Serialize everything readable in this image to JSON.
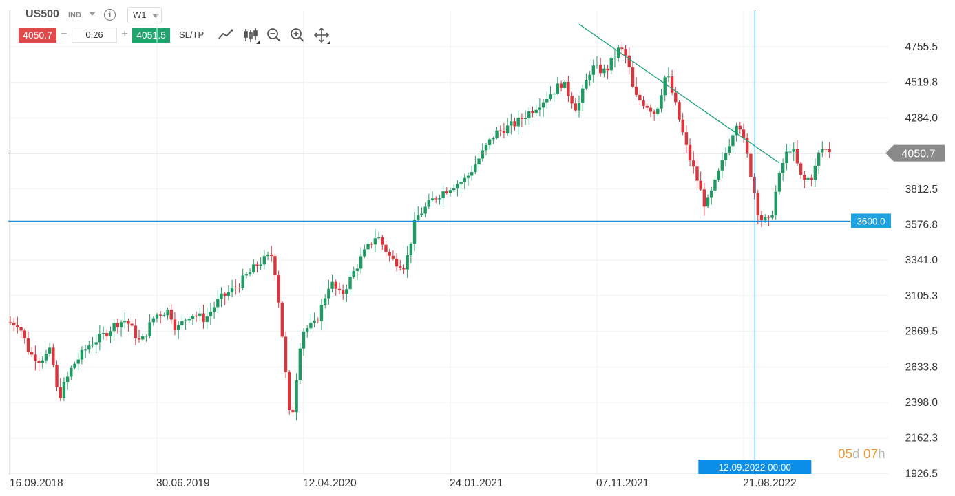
{
  "header": {
    "symbol": "US500",
    "instrument_type": "IND",
    "timeframe": "W1",
    "sell_price": "4050.7",
    "quantity": "0.26",
    "buy_price": "4051.5",
    "sltp_label": "SL/TP",
    "minus_label": "−",
    "plus_label": "+",
    "info_label": "i"
  },
  "toolbar": {
    "icons": [
      "line-chart-icon",
      "candlestick-icon",
      "zoom-out-icon",
      "zoom-in-icon",
      "move-icon"
    ]
  },
  "colors": {
    "bull": "#1f9a62",
    "bear": "#d8353d",
    "trendline": "#19a47a",
    "crosshair": "#1e90d8",
    "price_line": "#777777",
    "accent": "#1fa2e0"
  },
  "chart_data": {
    "type": "candlestick",
    "title": "",
    "ylim": [
      1810,
      4990
    ],
    "y_ticks": [
      "4755.5",
      "4519.8",
      "4284.0",
      "3812.5",
      "3576.8",
      "3341.0",
      "3105.3",
      "2869.5",
      "2633.8",
      "2398.0",
      "2162.3",
      "1926.5"
    ],
    "y_tick_values": [
      4755.5,
      4519.8,
      4284.0,
      3812.5,
      3576.8,
      3341.0,
      3105.3,
      2869.5,
      2633.8,
      2398.0,
      2162.3,
      1926.5
    ],
    "x_ticks": [
      "16.09.2018",
      "30.06.2019",
      "12.04.2020",
      "24.01.2021",
      "07.11.2021",
      "21.08.2022"
    ],
    "x_tick_values": [
      "2018-09-16",
      "2019-06-30",
      "2020-04-12",
      "2021-01-24",
      "2021-11-07",
      "2022-08-21"
    ],
    "grid": true,
    "current_price": {
      "value": 4050.7,
      "label": "4050.7"
    },
    "horizontal_line": {
      "value": 3600.0,
      "label": "3600.0"
    },
    "crosshair": {
      "date": "2022-09-12",
      "label": "12.09.2022 00:00"
    },
    "trendline": {
      "start": {
        "date": "2021-10-03",
        "value": 4905
      },
      "end": {
        "date": "2022-10-30",
        "value": 3985
      }
    },
    "candle_start_date": "2018-09-16",
    "candle_interval_days": 7,
    "anchors": [
      [
        "2018-09-16",
        2930
      ],
      [
        "2018-10-07",
        2920
      ],
      [
        "2018-10-28",
        2720
      ],
      [
        "2018-11-18",
        2680
      ],
      [
        "2018-12-09",
        2740
      ],
      [
        "2018-12-23",
        2420
      ],
      [
        "2019-01-20",
        2640
      ],
      [
        "2019-02-24",
        2790
      ],
      [
        "2019-03-17",
        2830
      ],
      [
        "2019-04-14",
        2920
      ],
      [
        "2019-05-05",
        2945
      ],
      [
        "2019-06-02",
        2790
      ],
      [
        "2019-06-30",
        2975
      ],
      [
        "2019-07-28",
        3010
      ],
      [
        "2019-08-11",
        2880
      ],
      [
        "2019-09-08",
        2990
      ],
      [
        "2019-10-06",
        2950
      ],
      [
        "2019-11-03",
        3080
      ],
      [
        "2019-12-08",
        3170
      ],
      [
        "2020-01-19",
        3320
      ],
      [
        "2020-02-16",
        3380
      ],
      [
        "2020-03-01",
        3000
      ],
      [
        "2020-03-22",
        2220
      ],
      [
        "2020-04-12",
        2870
      ],
      [
        "2020-05-10",
        2920
      ],
      [
        "2020-06-07",
        3200
      ],
      [
        "2020-06-28",
        3100
      ],
      [
        "2020-08-09",
        3370
      ],
      [
        "2020-09-06",
        3510
      ],
      [
        "2020-10-04",
        3350
      ],
      [
        "2020-11-01",
        3300
      ],
      [
        "2020-11-22",
        3620
      ],
      [
        "2020-12-27",
        3750
      ],
      [
        "2021-01-24",
        3820
      ],
      [
        "2021-02-28",
        3880
      ],
      [
        "2021-04-25",
        4180
      ],
      [
        "2021-06-06",
        4250
      ],
      [
        "2021-07-25",
        4390
      ],
      [
        "2021-09-05",
        4520
      ],
      [
        "2021-10-03",
        4340
      ],
      [
        "2021-10-31",
        4620
      ],
      [
        "2021-11-28",
        4590
      ],
      [
        "2021-12-26",
        4750
      ],
      [
        "2022-01-09",
        4680
      ],
      [
        "2022-01-23",
        4430
      ],
      [
        "2022-02-20",
        4360
      ],
      [
        "2022-03-06",
        4310
      ],
      [
        "2022-03-27",
        4590
      ],
      [
        "2022-04-17",
        4330
      ],
      [
        "2022-05-08",
        4050
      ],
      [
        "2022-05-22",
        3920
      ],
      [
        "2022-06-12",
        3690
      ],
      [
        "2022-06-26",
        3810
      ],
      [
        "2022-07-24",
        4080
      ],
      [
        "2022-08-14",
        4290
      ],
      [
        "2022-09-04",
        3990
      ],
      [
        "2022-09-25",
        3620
      ],
      [
        "2022-10-16",
        3590
      ],
      [
        "2022-10-30",
        3840
      ],
      [
        "2022-11-13",
        4020
      ],
      [
        "2022-11-27",
        4100
      ],
      [
        "2022-12-18",
        3860
      ],
      [
        "2023-01-08",
        3900
      ],
      [
        "2023-01-22",
        4080
      ],
      [
        "2023-02-05",
        4070
      ]
    ]
  },
  "timer": {
    "days_num": "05",
    "days_unit": "d",
    "hours_num": "07",
    "hours_unit": "h"
  }
}
